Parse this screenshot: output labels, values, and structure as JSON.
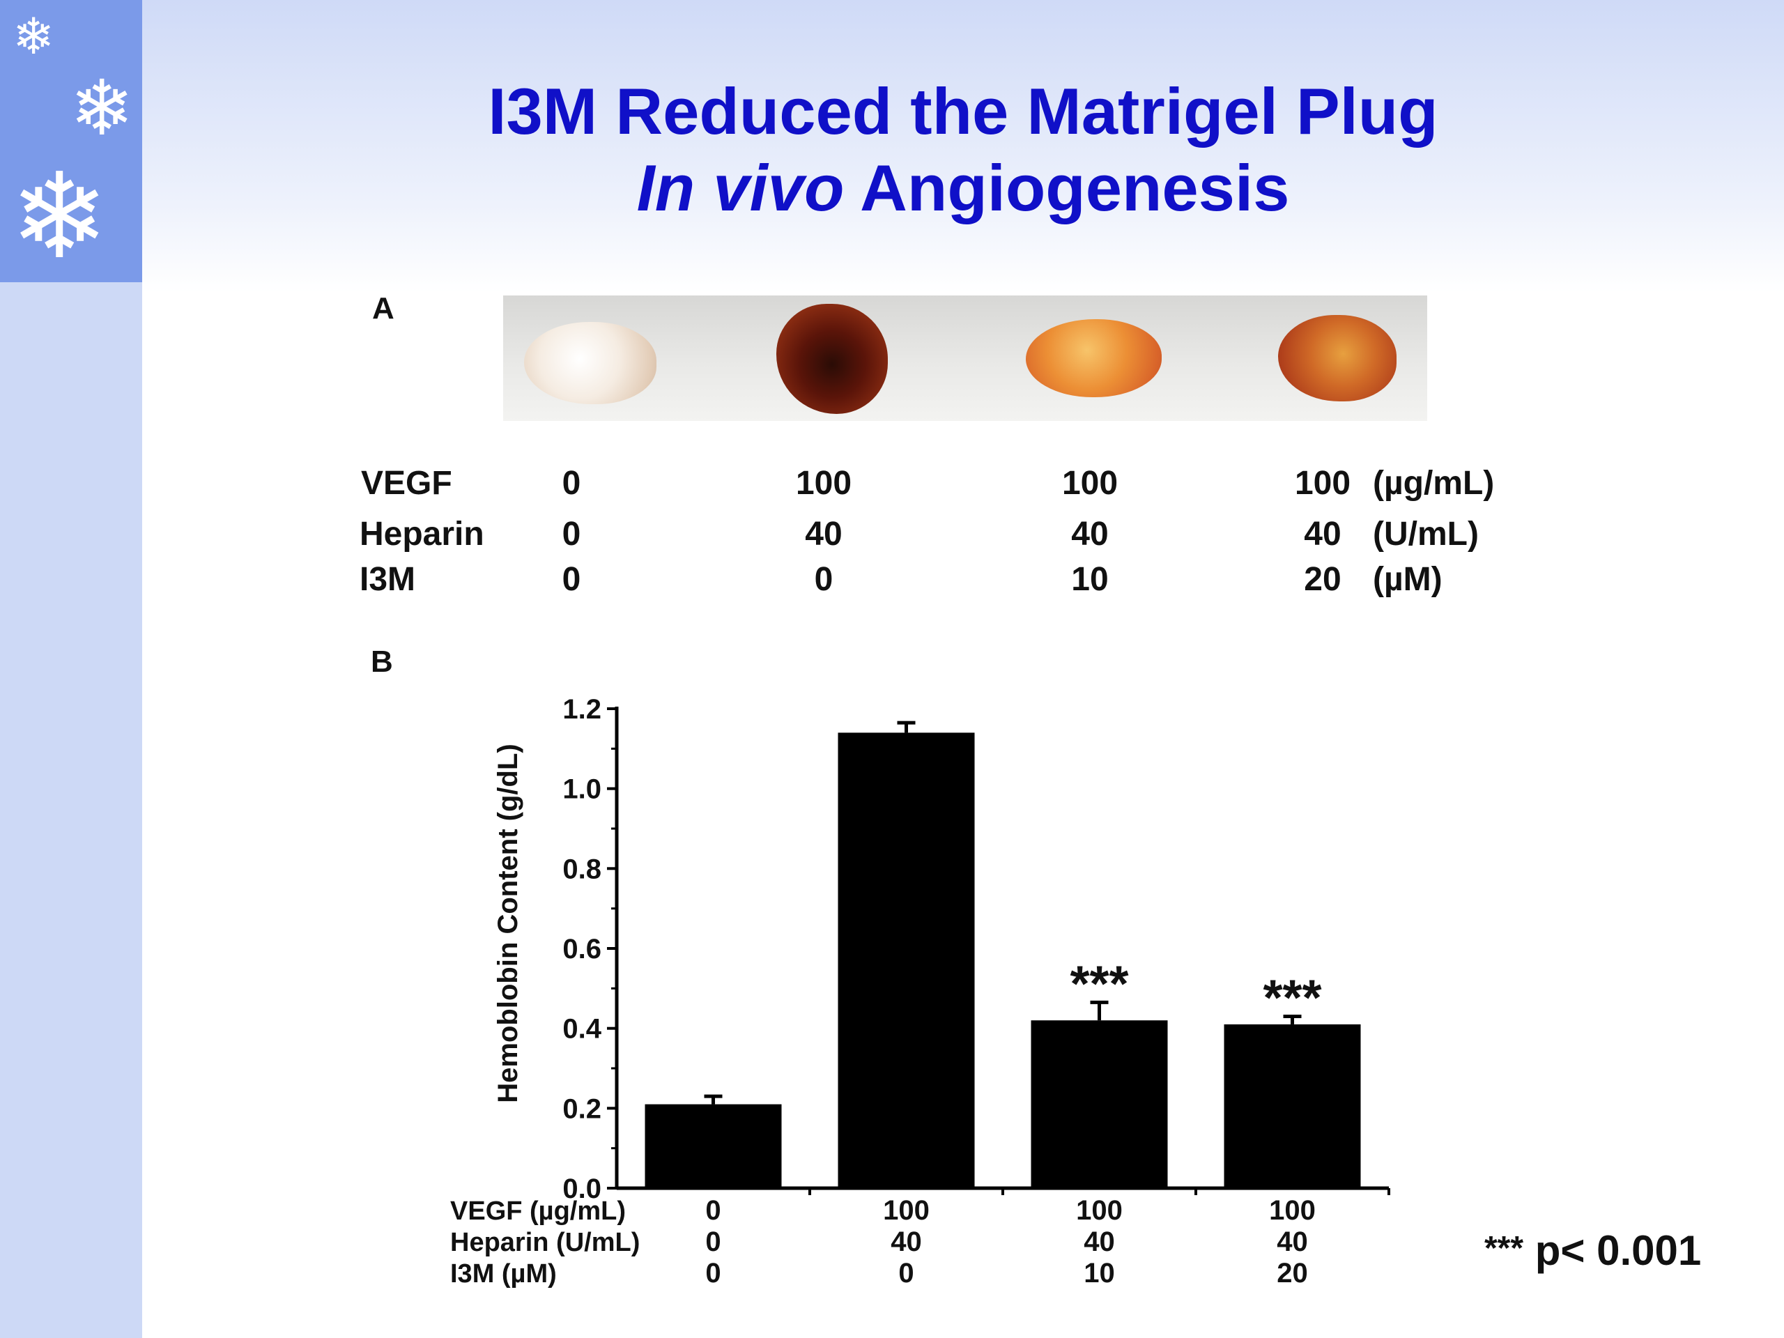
{
  "slide": {
    "title_line1": "I3M Reduced the Matrigel Plug",
    "title_line2_italic": "In vivo",
    "title_line2_rest": " Angiogenesis",
    "panel_a_label": "A",
    "panel_b_label": "B",
    "p_note_stars": "***",
    "p_note_text": " p< 0.001",
    "icons": [
      "snowflake-icon",
      "snowflake-icon",
      "snowflake-icon"
    ],
    "colors": {
      "title": "#1010c8",
      "side_panel": "#7b9ae9",
      "bars": "#000000"
    }
  },
  "treatment_table": {
    "rows": [
      {
        "label": "VEGF",
        "values": [
          "0",
          "100",
          "100",
          "100"
        ],
        "unit": "(µg/mL)"
      },
      {
        "label": "Heparin",
        "values": [
          "0",
          "40",
          "40",
          "40"
        ],
        "unit": "(U/mL)"
      },
      {
        "label": "I3M",
        "values": [
          "0",
          "0",
          "10",
          "20"
        ],
        "unit": "(µM)"
      }
    ]
  },
  "chart_data": {
    "type": "bar",
    "title": "",
    "ylabel": "Hemoblobin Content (g/dL)",
    "xlabel": "",
    "ylim": [
      0,
      1.2
    ],
    "yticks": [
      "0.0",
      "0.2",
      "0.4",
      "0.6",
      "0.8",
      "1.0",
      "1.2"
    ],
    "categories": [
      "0 / 0 / 0",
      "100 / 40 / 0",
      "100 / 40 / 10",
      "100 / 40 / 20"
    ],
    "values": [
      0.21,
      1.14,
      0.42,
      0.41
    ],
    "error": [
      0.02,
      0.025,
      0.045,
      0.02
    ],
    "significance": [
      "",
      "",
      "***",
      "***"
    ],
    "x_rows": [
      {
        "label": "VEGF (µg/mL)",
        "values": [
          "0",
          "100",
          "100",
          "100"
        ]
      },
      {
        "label": "Heparin (U/mL)",
        "values": [
          "0",
          "40",
          "40",
          "40"
        ]
      },
      {
        "label": "I3M (µM)",
        "values": [
          "0",
          "0",
          "10",
          "20"
        ]
      }
    ],
    "grid": false,
    "legend": "none"
  }
}
